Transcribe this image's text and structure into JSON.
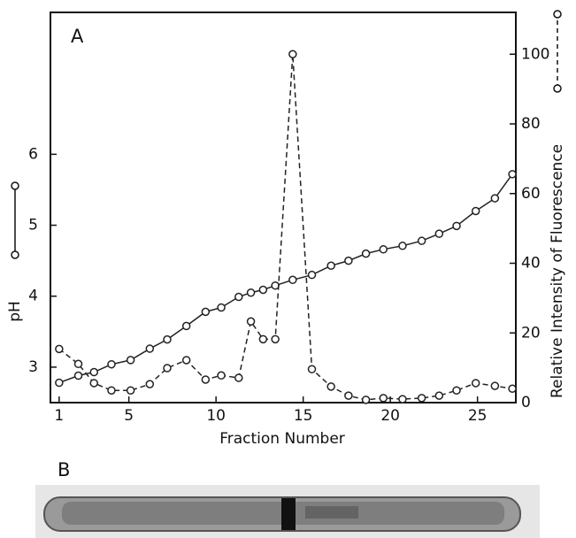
{
  "panel_a_label": "A",
  "panel_b_label": "B",
  "chart_data": {
    "type": "line",
    "xlabel": "Fraction   Number",
    "ylabel": "pH",
    "y2label": "Relative Intensity of Fluorescence",
    "x": [
      1,
      2.1,
      3,
      4,
      5.1,
      6.2,
      7.2,
      8.3,
      9.4,
      10.3,
      11.3,
      12,
      12.7,
      13.4,
      14.4,
      15.5,
      16.6,
      17.6,
      18.6,
      19.6,
      20.7,
      21.8,
      22.8,
      23.8,
      24.9,
      26,
      27
    ],
    "xlim": [
      0.5,
      27.2
    ],
    "xticks": [
      1,
      5,
      10,
      15,
      20,
      25
    ],
    "ylim": [
      2.5,
      8.0
    ],
    "yticks": [
      3,
      4,
      5,
      6
    ],
    "y2lim": [
      0,
      112
    ],
    "y2ticks": [
      0,
      20,
      40,
      60,
      80,
      100
    ],
    "series": [
      {
        "name": "pH",
        "color": "#222222",
        "dash": false,
        "values": [
          2.78,
          2.88,
          2.93,
          3.04,
          3.1,
          3.26,
          3.39,
          3.58,
          3.78,
          3.84,
          3.99,
          4.05,
          4.09,
          4.15,
          4.23,
          4.3,
          4.43,
          4.5,
          4.6,
          4.66,
          4.71,
          4.78,
          4.88,
          4.99,
          5.2,
          5.38,
          5.72
        ]
      },
      {
        "name": "Relative Intensity of Fluorescence",
        "color": "#222222",
        "dash": true,
        "axis": "y2",
        "values": [
          15.4,
          11.1,
          5.6,
          3.5,
          3.5,
          5.3,
          9.9,
          12.2,
          6.6,
          7.8,
          7.1,
          23.3,
          18.2,
          18.2,
          100,
          9.6,
          4.6,
          2,
          0.8,
          1.3,
          1,
          1.3,
          2,
          3.5,
          5.6,
          4.8,
          4
        ]
      }
    ]
  }
}
